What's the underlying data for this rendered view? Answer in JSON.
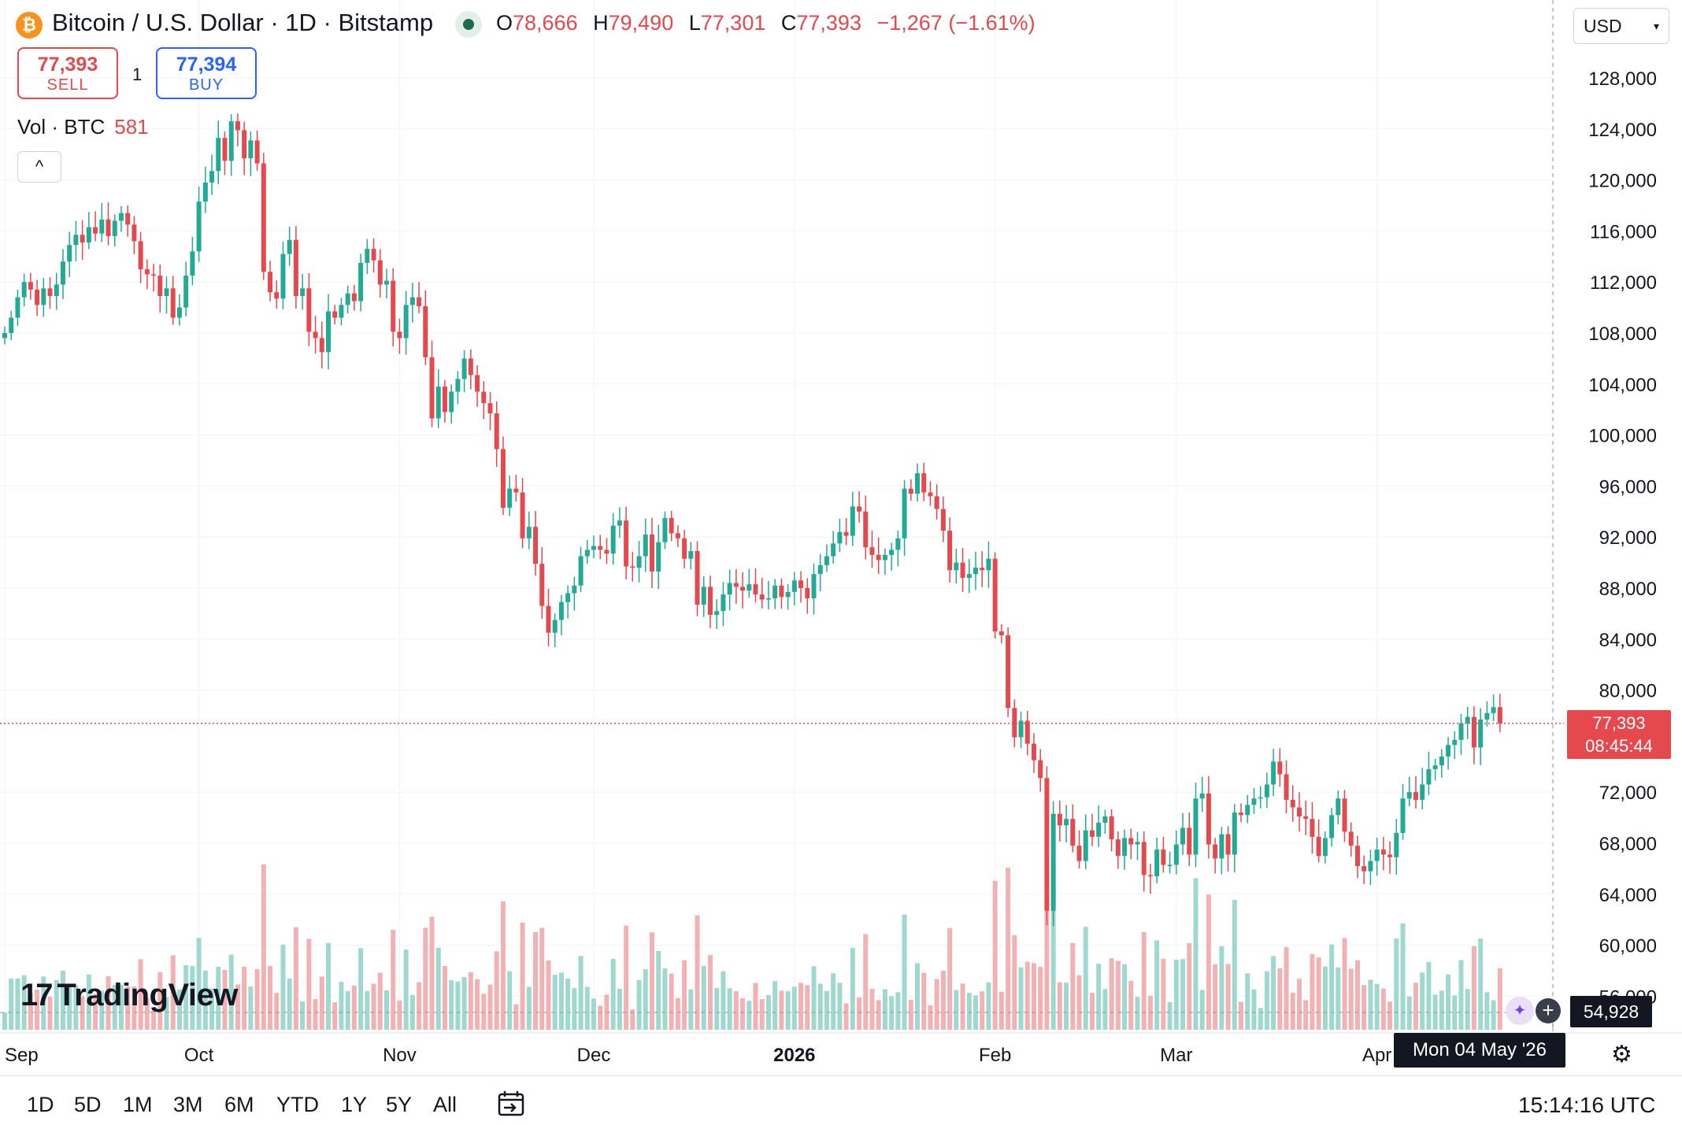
{
  "header": {
    "logo_glyph": "₿",
    "title": "Bitcoin / U.S. Dollar · 1D · Bitstamp",
    "ohlc": [
      {
        "k": "O",
        "v": "78,666"
      },
      {
        "k": "H",
        "v": "79,490"
      },
      {
        "k": "L",
        "v": "77,301"
      },
      {
        "k": "C",
        "v": "77,393"
      },
      {
        "k": "",
        "v": "−1,267 (−1.61%)"
      }
    ],
    "sell_price": "77,393",
    "sell_label": "SELL",
    "buy_price": "77,394",
    "buy_label": "BUY",
    "spread": "1",
    "volume_label": "Vol · BTC",
    "volume_value": "581",
    "collapse_glyph": "^",
    "currency": "USD",
    "currency_caret": "▾"
  },
  "logo": {
    "mark": "17",
    "name": "TradingView"
  },
  "overlay": {
    "last_price": "77,393",
    "countdown": "08:45:44",
    "crosshair_price": "54,928",
    "crosshair_date": "Mon 04 May '26",
    "plus_glyph": "+",
    "flag_glyph": "✦",
    "gear_glyph": "⚙"
  },
  "range_buttons": [
    "1D",
    "5D",
    "1M",
    "3M",
    "6M",
    "YTD",
    "1Y",
    "5Y",
    "All"
  ],
  "clock": "15:14:16 UTC",
  "colors": {
    "up": "#22ab94",
    "down": "#e5484d",
    "grid": "#f0f3fa",
    "axis_text": "#131722"
  },
  "chart_data": {
    "type": "candlestick",
    "symbol": "Bitcoin / U.S. Dollar",
    "interval": "1D",
    "exchange": "Bitstamp",
    "y_ticks": [
      128000,
      124000,
      120000,
      116000,
      112000,
      108000,
      104000,
      100000,
      96000,
      92000,
      88000,
      84000,
      80000,
      72000,
      68000,
      64000,
      60000,
      56000
    ],
    "y_tick_labels": [
      "128,000",
      "124,000",
      "120,000",
      "116,000",
      "112,000",
      "108,000",
      "104,000",
      "100,000",
      "96,000",
      "92,000",
      "88,000",
      "84,000",
      "80,000",
      "72,000",
      "68,000",
      "64,000",
      "60,000",
      "56,000"
    ],
    "ylim": [
      53300,
      132500
    ],
    "x_labels": [
      {
        "text": "Sep",
        "date": "2025-09-01"
      },
      {
        "text": "Oct",
        "date": "2025-10-01"
      },
      {
        "text": "Nov",
        "date": "2025-11-01"
      },
      {
        "text": "Dec",
        "date": "2025-12-01"
      },
      {
        "text": "2026",
        "date": "2026-01-01"
      },
      {
        "text": "Feb",
        "date": "2026-02-01"
      },
      {
        "text": "Mar",
        "date": "2026-03-01"
      },
      {
        "text": "Apr",
        "date": "2026-04-01"
      }
    ],
    "last_close": 77393,
    "start_date": "2025-09-01",
    "closes": [
      108000,
      109200,
      110800,
      112000,
      111400,
      110200,
      111500,
      110900,
      111800,
      113600,
      114900,
      115700,
      115100,
      116300,
      115800,
      116900,
      115600,
      116800,
      117400,
      116500,
      115200,
      113000,
      112600,
      112500,
      110900,
      111500,
      109200,
      110000,
      112500,
      114400,
      118300,
      119800,
      120700,
      123300,
      121500,
      124600,
      123900,
      121700,
      123100,
      121300,
      112800,
      111200,
      110700,
      114200,
      115300,
      110900,
      111500,
      108100,
      107600,
      106500,
      109700,
      109200,
      110200,
      111100,
      110500,
      113500,
      114600,
      113700,
      111800,
      112100,
      108100,
      107600,
      110200,
      110800,
      110100,
      106100,
      101300,
      103800,
      101800,
      103400,
      104400,
      106000,
      104700,
      103400,
      102500,
      101700,
      98900,
      94300,
      95800,
      95500,
      91900,
      92800,
      89900,
      86600,
      84500,
      85500,
      86900,
      87600,
      88200,
      90500,
      91000,
      91300,
      91000,
      90700,
      92900,
      93300,
      89700,
      89600,
      90500,
      92200,
      89300,
      91600,
      93500,
      92300,
      91900,
      90300,
      90900,
      86700,
      88100,
      85900,
      86200,
      87500,
      88400,
      88100,
      87800,
      88300,
      87500,
      87100,
      87200,
      88200,
      87300,
      87700,
      88600,
      88000,
      87200,
      89100,
      89800,
      90500,
      91500,
      92400,
      92100,
      94400,
      94000,
      91200,
      90600,
      90200,
      90600,
      91000,
      91900,
      95800,
      95400,
      97000,
      95500,
      95200,
      94200,
      92500,
      89400,
      90000,
      88800,
      89100,
      89600,
      89400,
      90300,
      84600,
      84300,
      78600,
      76300,
      77600,
      75800,
      74500,
      73100,
      62700,
      70300,
      69400,
      69900,
      67800,
      66600,
      69000,
      68500,
      69600,
      70100,
      68300,
      67000,
      68400,
      67900,
      68100,
      65500,
      65400,
      67500,
      66300,
      66300,
      67900,
      69200,
      67100,
      71500,
      71900,
      67900,
      66800,
      68700,
      67100,
      70400,
      70200,
      71000,
      71500,
      71600,
      72600,
      74400,
      73400,
      71400,
      70800,
      70100,
      69900,
      68500,
      67000,
      68400,
      70200,
      71500,
      68900,
      67800,
      66200,
      65800,
      66600,
      67500,
      67100,
      66900,
      68800,
      71500,
      72000,
      71400,
      72600,
      73800,
      74100,
      74800,
      75700,
      76100,
      77400,
      77900,
      75500,
      77700,
      78200,
      78666,
      77393
    ],
    "volume_axis": {
      "max_ref": 8000
    }
  }
}
